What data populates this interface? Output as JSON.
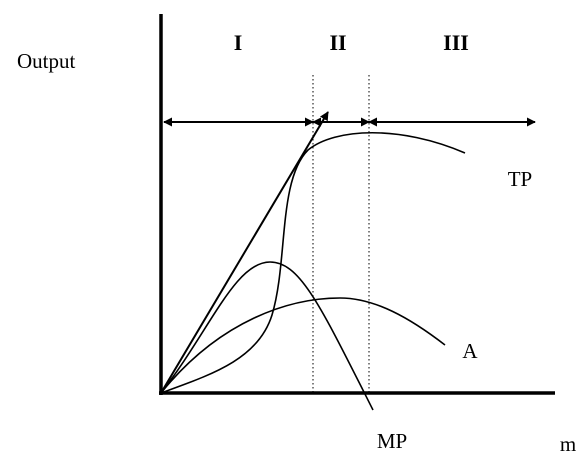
{
  "labels": {
    "y_axis": "Output",
    "x_axis": "m",
    "stage_1": "I",
    "stage_2": "II",
    "stage_3": "III",
    "tp": "TP",
    "ap": "A",
    "mp": "MP"
  }
}
